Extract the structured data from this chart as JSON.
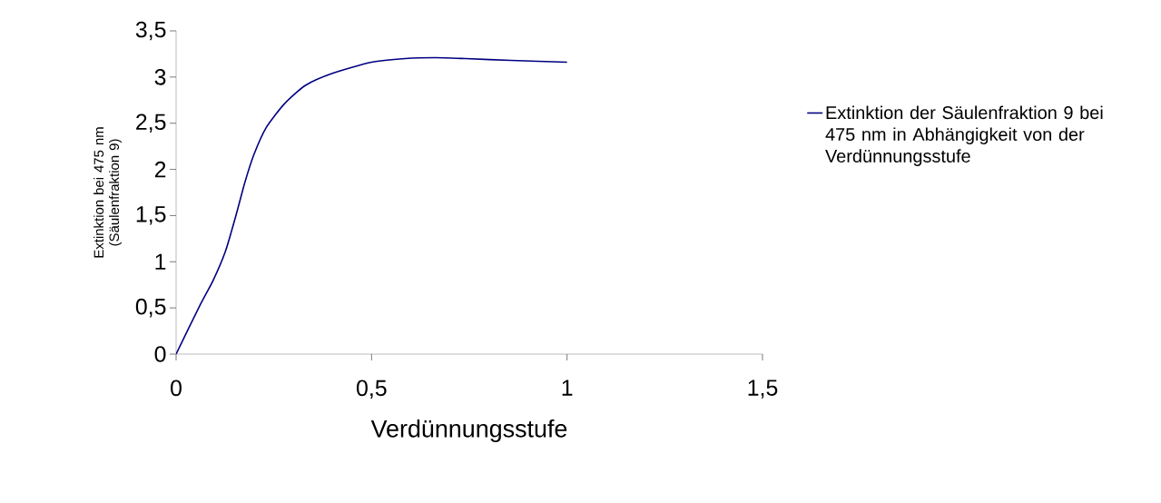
{
  "chart_data": {
    "type": "line",
    "xlabel": "Verdünnungsstufe",
    "ylabel": "Extinktion bei 475 nm (Säulenfraktion 9)",
    "xlim": [
      0,
      1.5
    ],
    "ylim": [
      0,
      3.5
    ],
    "xticks": [
      0,
      {
        "value": 0.5,
        "label": "0,5"
      },
      1,
      {
        "value": 1.5,
        "label": "1,5"
      }
    ],
    "yticks": [
      0,
      {
        "value": 0.5,
        "label": "0,5"
      },
      1,
      {
        "value": 1.5,
        "label": "1,5"
      },
      2,
      {
        "value": 2.5,
        "label": "2,5"
      },
      3,
      {
        "value": 3.5,
        "label": "3,5"
      }
    ],
    "grid": false,
    "legend": "right",
    "marker": "none",
    "line_style": "solid",
    "series": [
      {
        "name": "Extinktion der Säulenfraktion 9 bei 475 nm in Abhängigkeit von der Verdünnungsstufe",
        "color": "#000080",
        "x": [
          0,
          0.06,
          0.095,
          0.126,
          0.153,
          0.176,
          0.199,
          0.23,
          0.277,
          0.331,
          0.4,
          0.5,
          0.586,
          0.663,
          0.74,
          0.856,
          1.0
        ],
        "values": [
          0,
          0.52,
          0.8,
          1.11,
          1.5,
          1.86,
          2.16,
          2.45,
          2.71,
          2.91,
          3.04,
          3.16,
          3.2,
          3.21,
          3.2,
          3.18,
          3.16
        ]
      }
    ]
  }
}
